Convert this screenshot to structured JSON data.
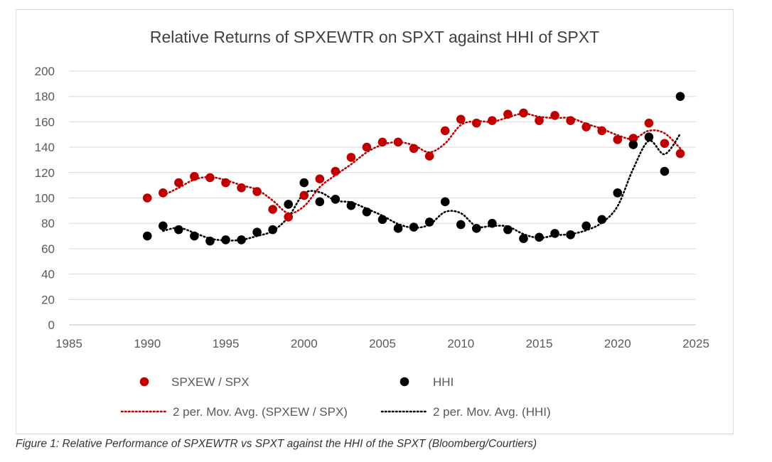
{
  "caption": "Figure 1: Relative Performance of SPXEWTR vs SPXT against the HHI of the SPXT (Bloomberg/Courtiers)",
  "chart_data": {
    "type": "scatter",
    "title": "Relative Returns of SPXEWTR on SPXT against HHI of SPXT",
    "xlabel": "",
    "ylabel": "",
    "xlim": [
      1985,
      2025
    ],
    "ylim": [
      0,
      200
    ],
    "xticks": [
      1985,
      1990,
      1995,
      2000,
      2005,
      2010,
      2015,
      2020,
      2025
    ],
    "yticks": [
      0,
      20,
      40,
      60,
      80,
      100,
      120,
      140,
      160,
      180,
      200
    ],
    "grid": "horizontal",
    "legend_position": "bottom",
    "x": [
      1990,
      1991,
      1992,
      1993,
      1994,
      1995,
      1996,
      1997,
      1998,
      1999,
      2000,
      2001,
      2002,
      2003,
      2004,
      2005,
      2006,
      2007,
      2008,
      2009,
      2010,
      2011,
      2012,
      2013,
      2014,
      2015,
      2016,
      2017,
      2018,
      2019,
      2020,
      2021,
      2022,
      2023,
      2024
    ],
    "series": [
      {
        "name": "SPXEW / SPX",
        "color": "#c00000",
        "marker": "circle",
        "values": [
          100,
          104,
          112,
          117,
          116,
          112,
          108,
          105,
          91,
          85,
          102,
          115,
          121,
          132,
          140,
          144,
          144,
          139,
          133,
          153,
          162,
          159,
          161,
          166,
          167,
          161,
          165,
          161,
          156,
          153,
          146,
          147,
          159,
          143,
          135
        ]
      },
      {
        "name": "HHI",
        "color": "#000000",
        "marker": "circle",
        "values": [
          70,
          78,
          75,
          70,
          66,
          67,
          67,
          73,
          75,
          95,
          112,
          97,
          99,
          94,
          89,
          83,
          76,
          77,
          81,
          97,
          79,
          76,
          80,
          75,
          68,
          69,
          72,
          71,
          78,
          83,
          104,
          142,
          148,
          121,
          180
        ]
      }
    ],
    "trendlines": [
      {
        "name": "2 per. Mov. Avg. (SPXEW / SPX)",
        "type": "moving_average",
        "period": 2,
        "color": "#c00000",
        "style": "dotted"
      },
      {
        "name": "2 per. Mov. Avg. (HHI)",
        "type": "moving_average",
        "period": 2,
        "color": "#000000",
        "style": "dotted"
      }
    ]
  }
}
